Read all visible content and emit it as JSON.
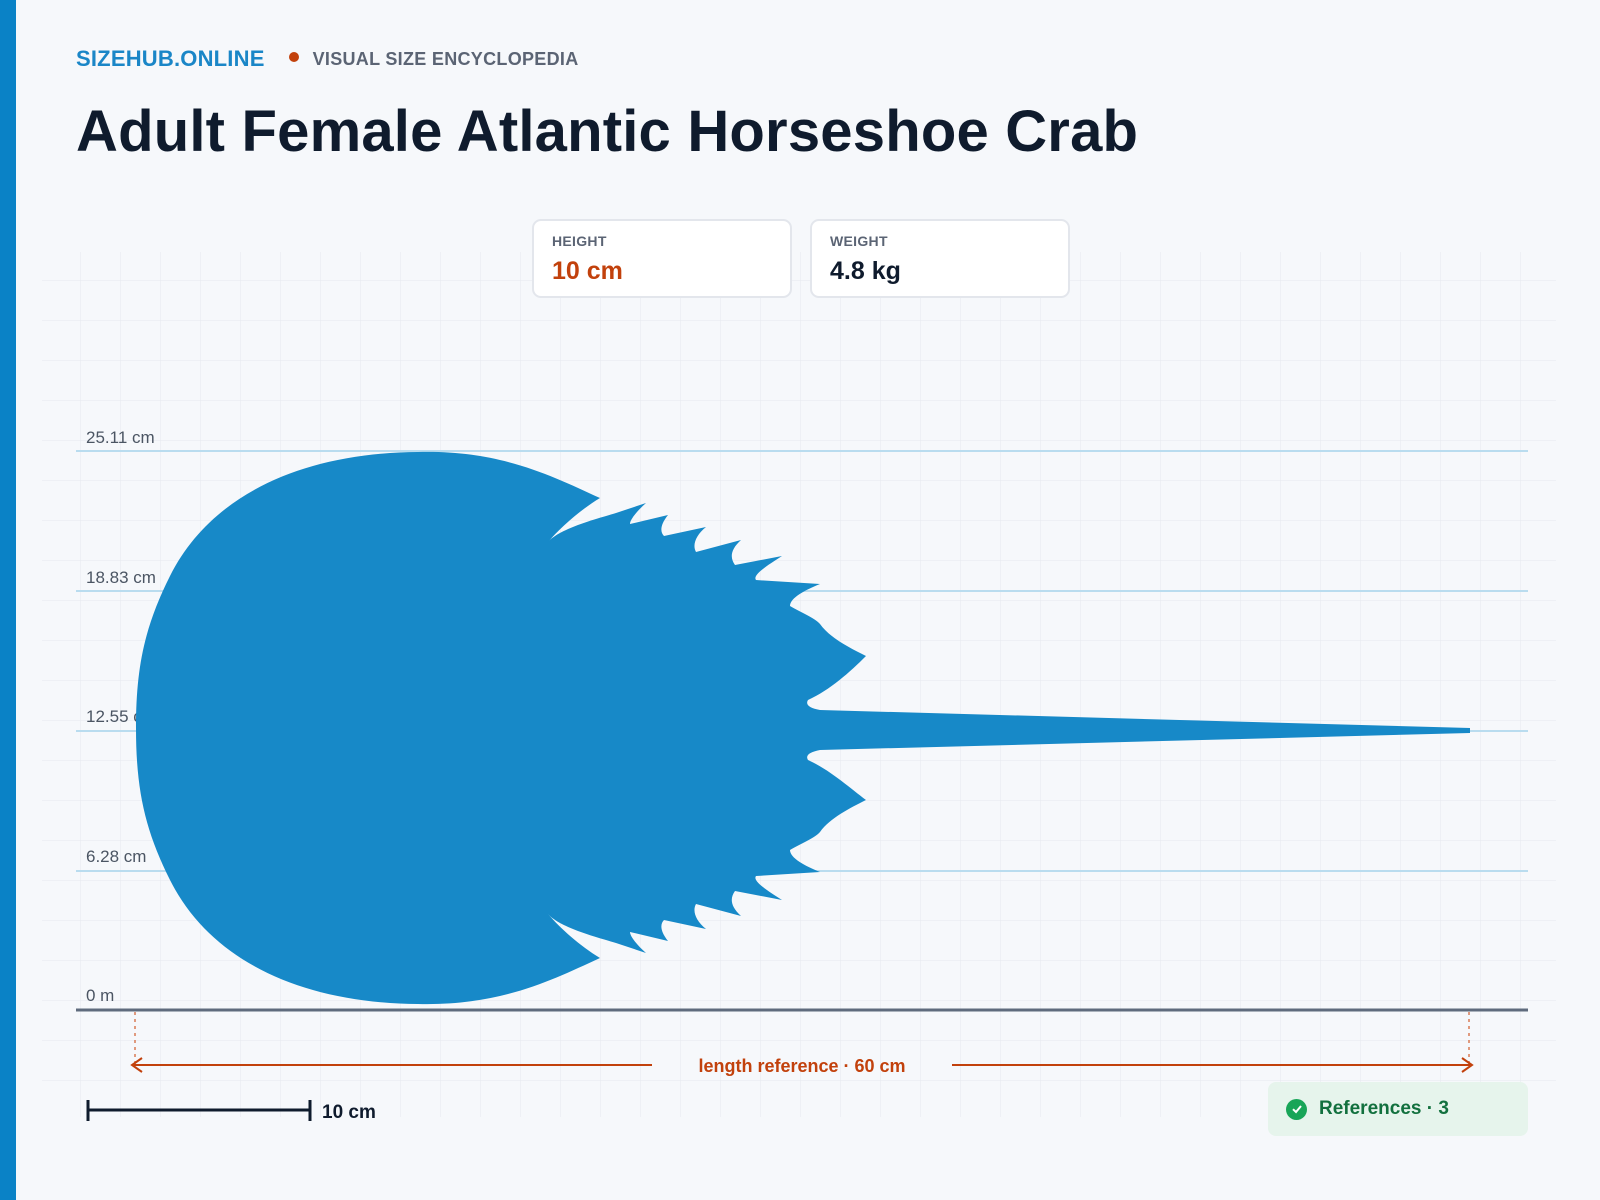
{
  "brand": {
    "site": "SIZEHUB.ONLINE",
    "tagline": "VISUAL SIZE ENCYCLOPEDIA"
  },
  "title": "Adult Female Atlantic Horseshoe Crab",
  "stats": [
    {
      "label": "HEIGHT",
      "value": "10 cm"
    },
    {
      "label": "WEIGHT",
      "value": "4.8 kg"
    }
  ],
  "chart_data": {
    "type": "other",
    "y_ticks": [
      "0 m",
      "6.28 cm",
      "12.55 cm",
      "18.83 cm",
      "25.11 cm"
    ],
    "length_reference": "length reference · 60 cm",
    "scale_bar": "10 cm",
    "grid": true
  },
  "references": {
    "label": "References · 3",
    "icon": "check-circle-icon"
  },
  "colors": {
    "accent": "#0a82c6",
    "silhouette": "#1789c8",
    "highlight": "#c2410c",
    "text_dark": "#0f1b2d",
    "success": "#18a558"
  }
}
